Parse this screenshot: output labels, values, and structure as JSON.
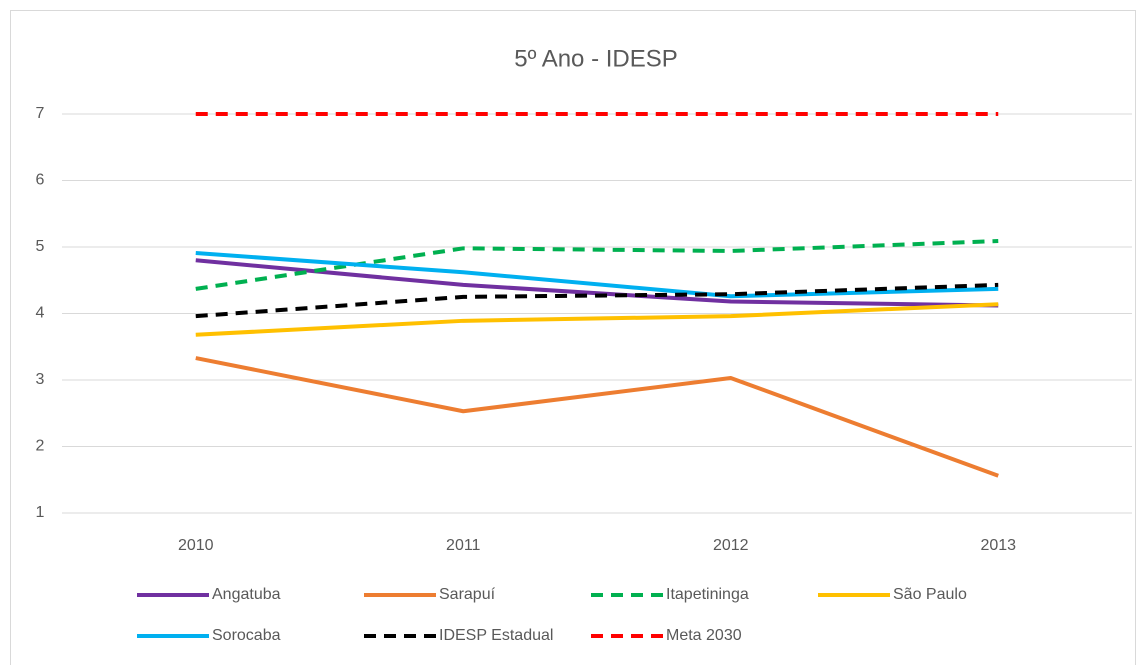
{
  "chart_data": {
    "type": "line",
    "title": "5º Ano - IDESP",
    "categories": [
      "2010",
      "2011",
      "2012",
      "2013"
    ],
    "series": [
      {
        "name": "Angatuba",
        "color": "#7030a0",
        "dashed": false,
        "values": [
          4.8,
          4.43,
          4.18,
          4.12
        ]
      },
      {
        "name": "Sarapuí",
        "color": "#ed7d31",
        "dashed": false,
        "values": [
          3.33,
          2.53,
          3.03,
          1.56
        ]
      },
      {
        "name": "Itapetininga",
        "color": "#00b050",
        "dashed": true,
        "values": [
          4.37,
          4.98,
          4.94,
          5.09
        ]
      },
      {
        "name": "São Paulo",
        "color": "#ffc000",
        "dashed": false,
        "values": [
          3.68,
          3.89,
          3.96,
          4.14
        ]
      },
      {
        "name": "Sorocaba",
        "color": "#00b0f0",
        "dashed": false,
        "values": [
          4.91,
          4.62,
          4.26,
          4.37
        ]
      },
      {
        "name": "IDESP Estadual",
        "color": "#000000",
        "dashed": true,
        "values": [
          3.96,
          4.25,
          4.29,
          4.43
        ]
      },
      {
        "name": "Meta 2030",
        "color": "#ff0000",
        "dashed": true,
        "values": [
          7,
          7,
          7,
          7
        ]
      }
    ],
    "ylim": [
      1,
      7
    ],
    "yticks": [
      1,
      2,
      3,
      4,
      5,
      6,
      7
    ],
    "grid": true,
    "legend": "bottom"
  }
}
